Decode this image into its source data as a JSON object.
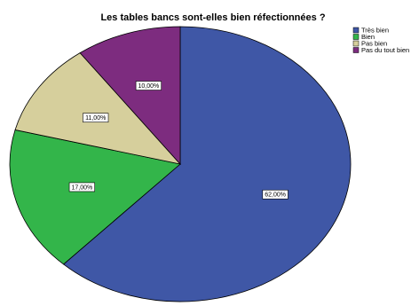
{
  "chart_data": {
    "type": "pie",
    "title": "Les tables bancs sont-elles bien réfectionnées ?",
    "categories": [
      "Très bien",
      "Bien",
      "Pas bien",
      "Pas du tout bien"
    ],
    "values": [
      62,
      17,
      11,
      10
    ],
    "data_labels": [
      "62,00%",
      "17,00%",
      "11,00%",
      "10,00%"
    ],
    "colors": [
      "#3f57a6",
      "#33b54a",
      "#d6cf9c",
      "#7d2c7f"
    ],
    "legend_position": "top-right",
    "start_angle_deg": 0,
    "direction": "clockwise"
  }
}
